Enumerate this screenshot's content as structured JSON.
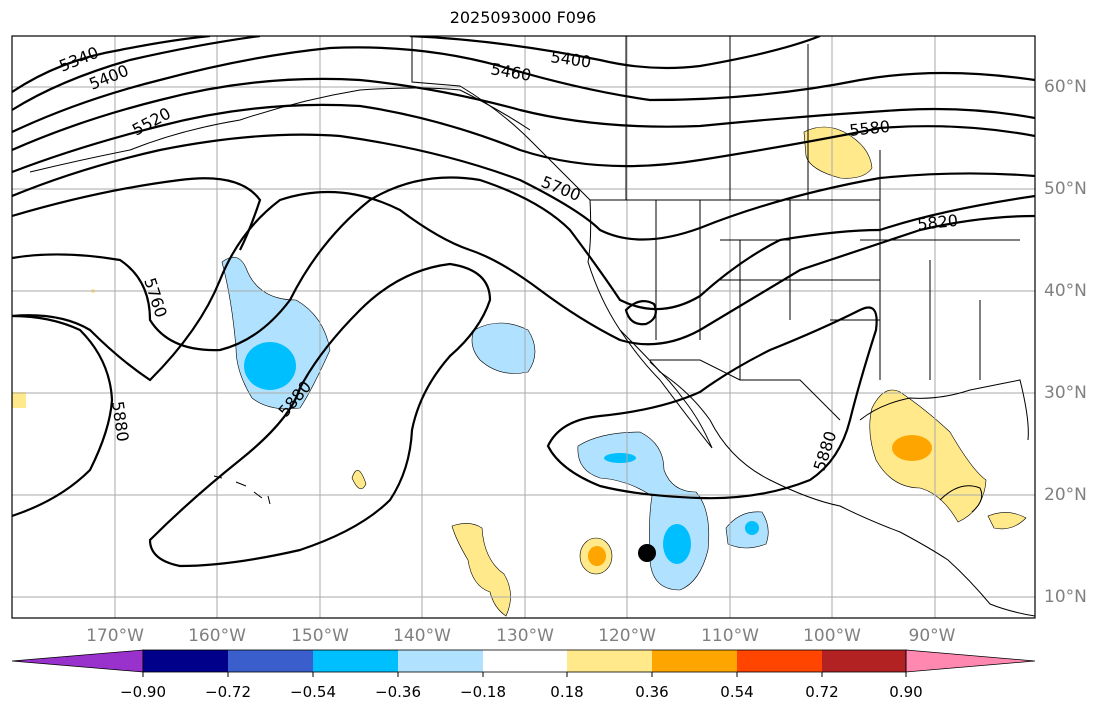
{
  "title": "2025093000 F096",
  "lat_labels": [
    "60°N",
    "50°N",
    "40°N",
    "30°N",
    "20°N",
    "10°N"
  ],
  "lon_labels": [
    "170°W",
    "160°W",
    "150°W",
    "140°W",
    "130°W",
    "120°W",
    "110°W",
    "100°W",
    "90°W"
  ],
  "contour_labels": [
    "5340",
    "5400",
    "5520",
    "5400",
    "5460",
    "5700",
    "5580",
    "5820",
    "5760",
    "5880",
    "5880",
    "5880"
  ],
  "colorbar": {
    "ticks": [
      "−0.90",
      "−0.72",
      "−0.54",
      "−0.36",
      "−0.18",
      "0.18",
      "0.36",
      "0.54",
      "0.72",
      "0.90"
    ],
    "colors": [
      "#9932cc",
      "#00008b",
      "#3a5fcd",
      "#00bfff",
      "#b0e2ff",
      "#ffffff",
      "#ffe98a",
      "#ffa500",
      "#ff4500",
      "#b22222",
      "#ff88b0"
    ]
  },
  "marker": {
    "label": "storm-center-dot"
  }
}
